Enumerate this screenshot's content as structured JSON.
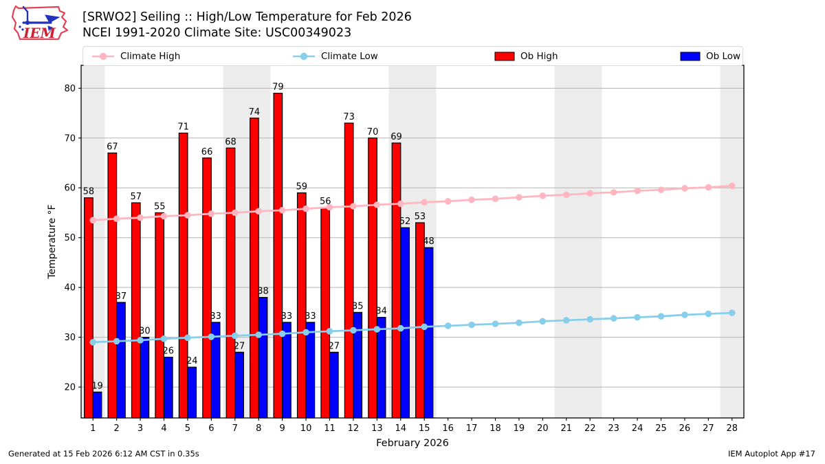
{
  "header": {
    "logo_text": "IEM",
    "title_line1": "[SRWO2] Seiling :: High/Low Temperature for Feb 2026",
    "title_line2": "NCEI 1991-2020 Climate Site: USC00349023"
  },
  "legend": {
    "items": [
      {
        "label": "Climate High",
        "type": "line-marker",
        "color": "#ffb6c1"
      },
      {
        "label": "Climate Low",
        "type": "line-marker",
        "color": "#87ceeb"
      },
      {
        "label": "Ob High",
        "type": "swatch",
        "color": "#ff0000"
      },
      {
        "label": "Ob Low",
        "type": "swatch",
        "color": "#0000ff"
      }
    ]
  },
  "chart_data": {
    "type": "bar",
    "title": "[SRWO2] Seiling :: High/Low Temperature for Feb 2026",
    "subtitle": "NCEI 1991-2020 Climate Site: USC00349023",
    "xlabel": "February 2026",
    "ylabel": "Temperature °F",
    "x": [
      1,
      2,
      3,
      4,
      5,
      6,
      7,
      8,
      9,
      10,
      11,
      12,
      13,
      14,
      15,
      16,
      17,
      18,
      19,
      20,
      21,
      22,
      23,
      24,
      25,
      26,
      27,
      28
    ],
    "yticks": [
      20,
      30,
      40,
      50,
      60,
      70,
      80
    ],
    "ylim": [
      13.8,
      84.6
    ],
    "xlim": [
      0.5,
      28.5
    ],
    "grid": true,
    "weekend_bands": [
      [
        0.5,
        1.5
      ],
      [
        6.5,
        8.5
      ],
      [
        13.5,
        15.5
      ],
      [
        20.5,
        22.5
      ],
      [
        27.5,
        28.5
      ]
    ],
    "series": [
      {
        "name": "Ob High",
        "type": "bar",
        "color": "#ff0000",
        "values": [
          58,
          67,
          57,
          55,
          71,
          66,
          68,
          74,
          79,
          59,
          56,
          73,
          70,
          69,
          53
        ]
      },
      {
        "name": "Ob Low",
        "type": "bar",
        "color": "#0000ff",
        "values": [
          19,
          37,
          30,
          26,
          24,
          33,
          27,
          38,
          33,
          33,
          27,
          35,
          34,
          52,
          48
        ]
      },
      {
        "name": "Climate High",
        "type": "line",
        "color": "#ffb6c1",
        "values": [
          53.5,
          53.8,
          54.0,
          54.3,
          54.5,
          54.8,
          55.0,
          55.3,
          55.5,
          55.8,
          56.1,
          56.3,
          56.6,
          56.8,
          57.1,
          57.3,
          57.6,
          57.8,
          58.1,
          58.4,
          58.6,
          58.9,
          59.1,
          59.4,
          59.6,
          59.9,
          60.1,
          60.4
        ]
      },
      {
        "name": "Climate Low",
        "type": "line",
        "color": "#87ceeb",
        "values": [
          29.0,
          29.2,
          29.4,
          29.7,
          29.9,
          30.1,
          30.3,
          30.5,
          30.7,
          31.0,
          31.2,
          31.4,
          31.6,
          31.8,
          32.1,
          32.3,
          32.5,
          32.7,
          32.9,
          33.2,
          33.4,
          33.6,
          33.8,
          34.0,
          34.2,
          34.5,
          34.7,
          34.9
        ]
      }
    ]
  },
  "colors": {
    "ob_high": "#ff0000",
    "ob_low": "#0000ff",
    "climate_high": "#ffb6c1",
    "climate_low": "#87ceeb",
    "weekend_band": "#ececec",
    "gridline": "#b3b3b3",
    "axis": "#000000",
    "logo_red": "#dd4455",
    "logo_blue": "#2233bb"
  },
  "footer": {
    "left": "Generated at 15 Feb 2026 6:12 AM CST in 0.35s",
    "right": "IEM Autoplot App #17"
  }
}
